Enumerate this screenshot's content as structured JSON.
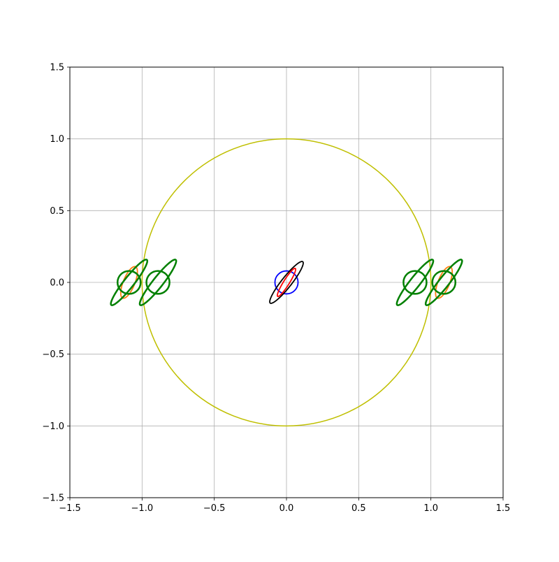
{
  "chart_data": {
    "type": "line",
    "title": "",
    "xlabel": "",
    "ylabel": "",
    "xlim": [
      -1.5,
      1.5
    ],
    "ylim": [
      -1.5,
      1.5
    ],
    "grid": true,
    "legend": "none",
    "xticks": [
      -1.5,
      -1.0,
      -0.5,
      0.0,
      0.5,
      1.0,
      1.5
    ],
    "yticks": [
      -1.5,
      -1.0,
      -0.5,
      0.0,
      0.5,
      1.0,
      1.5
    ],
    "xtick_labels": [
      "−1.5",
      "−1.0",
      "−0.5",
      "0.0",
      "0.5",
      "1.0",
      "1.5"
    ],
    "ytick_labels": [
      "−1.5",
      "−1.0",
      "−0.5",
      "0.0",
      "0.5",
      "1.0",
      "1.5"
    ],
    "colors": {
      "unit_circle": "#bfbf00",
      "blue": "#0000ff",
      "red": "#ff0000",
      "black": "#000000",
      "orange": "#ff7f0e",
      "green": "#008000",
      "grid": "#b0b0b0"
    },
    "shapes": [
      {
        "kind": "circle",
        "color": "unit_circle",
        "cx": 0.0,
        "cy": 0.0,
        "r": 1.0,
        "width": 1.5
      },
      {
        "kind": "circle",
        "color": "blue",
        "cx": 0.0,
        "cy": 0.0,
        "r": 0.08,
        "width": 1.8
      },
      {
        "kind": "ellipse",
        "color": "black",
        "cx": 0.0,
        "cy": 0.0,
        "a": 0.183,
        "b": 0.035,
        "angle_deg": 52,
        "width": 1.8
      },
      {
        "kind": "ellipse",
        "color": "red",
        "cx": 0.0,
        "cy": 0.0,
        "a": 0.115,
        "b": 0.02,
        "angle_deg": 58,
        "width": 1.8
      },
      {
        "kind": "ellipse",
        "color": "orange",
        "cx": -1.09,
        "cy": 0.0,
        "a": 0.118,
        "b": 0.04,
        "angle_deg": 68,
        "width": 1.8
      },
      {
        "kind": "circle",
        "color": "green",
        "cx": -1.09,
        "cy": 0.0,
        "r": 0.08,
        "width": 2.5
      },
      {
        "kind": "ellipse",
        "color": "green",
        "cx": -1.09,
        "cy": 0.0,
        "a": 0.2,
        "b": 0.035,
        "angle_deg": 52,
        "width": 2.5
      },
      {
        "kind": "circle",
        "color": "green",
        "cx": -0.89,
        "cy": 0.0,
        "r": 0.08,
        "width": 2.5
      },
      {
        "kind": "ellipse",
        "color": "green",
        "cx": -0.89,
        "cy": 0.0,
        "a": 0.2,
        "b": 0.035,
        "angle_deg": 52,
        "width": 2.5
      },
      {
        "kind": "circle",
        "color": "green",
        "cx": 0.89,
        "cy": 0.0,
        "r": 0.08,
        "width": 2.5
      },
      {
        "kind": "ellipse",
        "color": "green",
        "cx": 0.89,
        "cy": 0.0,
        "a": 0.2,
        "b": 0.035,
        "angle_deg": 52,
        "width": 2.5
      },
      {
        "kind": "ellipse",
        "color": "orange",
        "cx": 1.09,
        "cy": 0.0,
        "a": 0.118,
        "b": 0.04,
        "angle_deg": 68,
        "width": 1.8
      },
      {
        "kind": "circle",
        "color": "green",
        "cx": 1.09,
        "cy": 0.0,
        "r": 0.08,
        "width": 2.5
      },
      {
        "kind": "ellipse",
        "color": "green",
        "cx": 1.09,
        "cy": 0.0,
        "a": 0.2,
        "b": 0.035,
        "angle_deg": 52,
        "width": 2.5
      }
    ]
  }
}
